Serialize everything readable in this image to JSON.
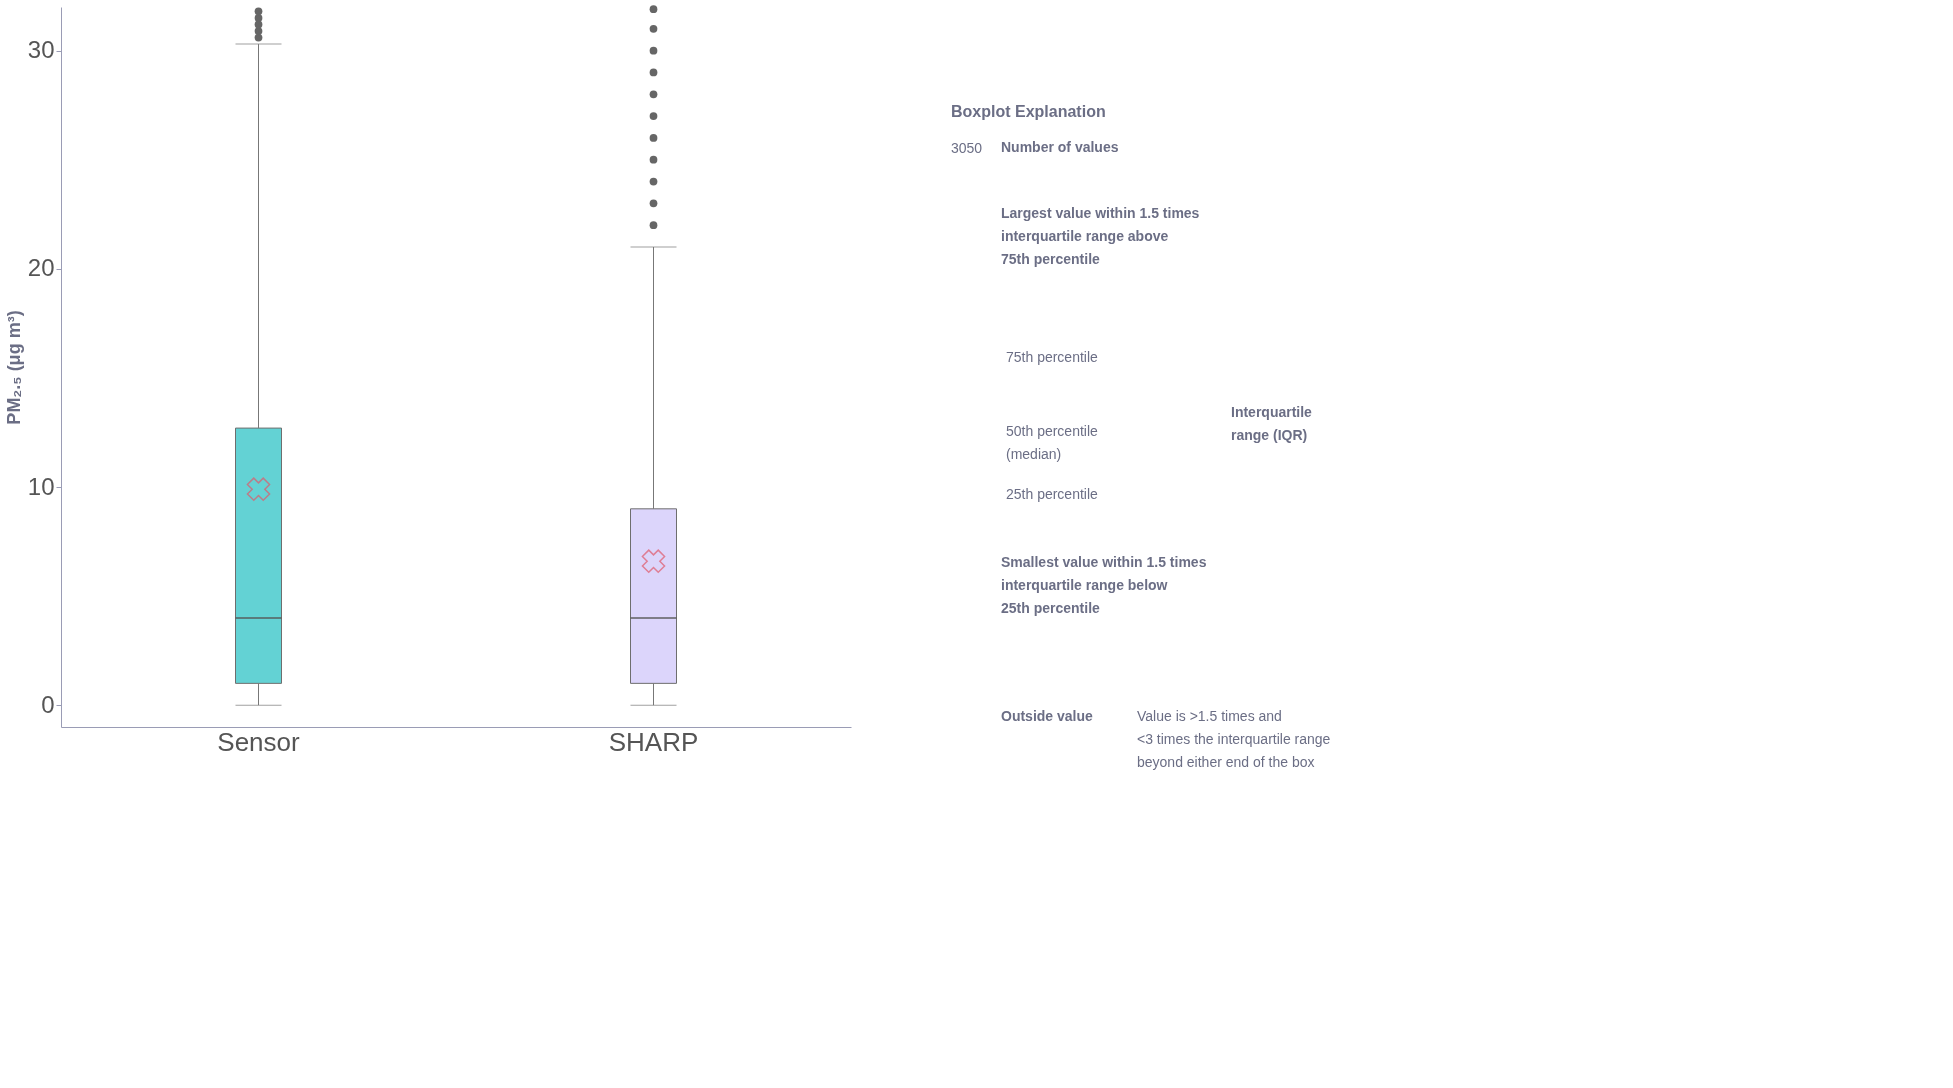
{
  "chart_data": [
    {
      "type": "box",
      "ylabel": "PM₂.₅ (μg m³)",
      "categories": [
        "Sensor",
        "SHARP"
      ],
      "colors": [
        "#48cbcd",
        "#d6cefb"
      ],
      "boxes": [
        {
          "low": 0,
          "q1": 1.0,
          "median": 4.0,
          "q3": 12.7,
          "high": 30.3,
          "mean": 9.9,
          "outliers": [
            30.6,
            30.9,
            31.2,
            31.5,
            31.8
          ]
        },
        {
          "low": 0,
          "q1": 1.0,
          "median": 4.0,
          "q3": 9.0,
          "high": 21.0,
          "mean": 6.6,
          "outliers": [
            22.0,
            23.0,
            24.0,
            25.0,
            26.0,
            27.0,
            28.0,
            29.0,
            30.0,
            31.0,
            31.9
          ]
        }
      ],
      "ylim": [
        -1,
        32
      ],
      "yticks": [
        0,
        10,
        20,
        30
      ],
      "grid": false,
      "legend": false
    },
    {
      "type": "other",
      "annotations": [
        "Boxplot  Explanation",
        "3050",
        "Number of values",
        "Largest value within 1.5 times\ninterquartile range above\n75th percentile",
        "75th percentile",
        "50th percentile\n(median)",
        "25th percentile",
        "Interquartile\nrange (IQR)",
        "Smallest value within 1.5 times\ninterquartile range below\n25th percentile",
        "Outside value",
        "Value is >1.5 times and\n<3 times the interquartile range\nbeyond either end of the box"
      ]
    }
  ]
}
